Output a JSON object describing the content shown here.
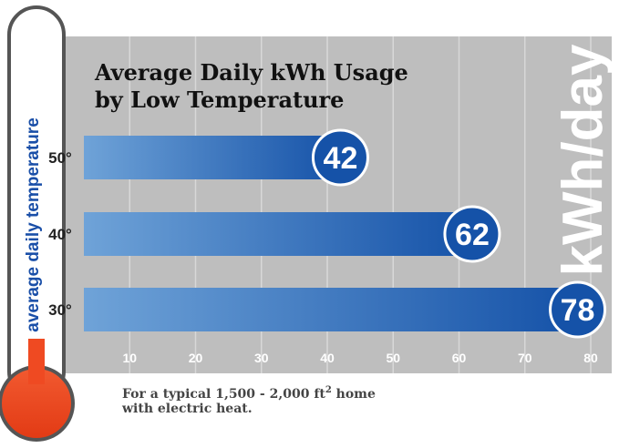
{
  "chart_data": {
    "type": "bar",
    "orientation": "horizontal",
    "title": "Average Daily kWh Usage by Low Temperature",
    "title_lines": [
      "Average Daily kWh Usage",
      "by Low Temperature"
    ],
    "categories": [
      "50°",
      "40°",
      "30°"
    ],
    "values": [
      42,
      62,
      78
    ],
    "value_labels": [
      "42",
      "62",
      "78"
    ],
    "xlim": [
      0,
      80
    ],
    "x_ticks": [
      10,
      20,
      30,
      40,
      50,
      60,
      70,
      80
    ],
    "unit_label": "kWh/day",
    "ylabel": "average daily temperature",
    "grid": true,
    "footnote": {
      "line1": "For a typical 1,500 - 2,000 ft",
      "superscript": "2",
      "line1_end": " home",
      "line2": "with electric heat."
    },
    "colors": {
      "panel": "#bebebe",
      "bar_light": "#6fa3d8",
      "bar_dark": "#1552a8",
      "badge": "#1552a8",
      "thermometer_bulb": "#f04a23",
      "thermometer_outline": "#555555"
    }
  }
}
